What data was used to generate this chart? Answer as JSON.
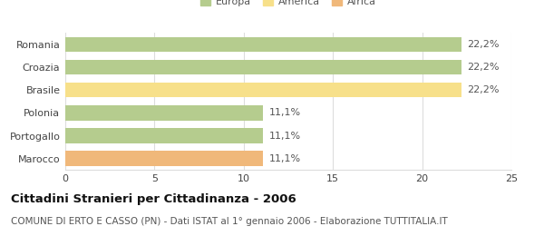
{
  "categories": [
    "Romania",
    "Croazia",
    "Brasile",
    "Polonia",
    "Portogallo",
    "Marocco"
  ],
  "values": [
    22.2,
    22.2,
    22.2,
    11.1,
    11.1,
    11.1
  ],
  "labels": [
    "22,2%",
    "22,2%",
    "22,2%",
    "11,1%",
    "11,1%",
    "11,1%"
  ],
  "colors": [
    "#b5cc8e",
    "#b5cc8e",
    "#f7e08a",
    "#b5cc8e",
    "#b5cc8e",
    "#f0b87a"
  ],
  "legend": [
    {
      "label": "Europa",
      "color": "#b5cc8e"
    },
    {
      "label": "America",
      "color": "#f7e08a"
    },
    {
      "label": "Africa",
      "color": "#f0b87a"
    }
  ],
  "xlim": [
    0,
    25
  ],
  "xticks": [
    0,
    5,
    10,
    15,
    20,
    25
  ],
  "title_bold": "Cittadini Stranieri per Cittadinanza - 2006",
  "subtitle": "COMUNE DI ERTO E CASSO (PN) - Dati ISTAT al 1° gennaio 2006 - Elaborazione TUTTITALIA.IT",
  "background_color": "#ffffff",
  "bar_height": 0.65,
  "grid_color": "#dddddd",
  "label_fontsize": 8,
  "tick_fontsize": 8,
  "title_fontsize": 9.5,
  "subtitle_fontsize": 7.5
}
